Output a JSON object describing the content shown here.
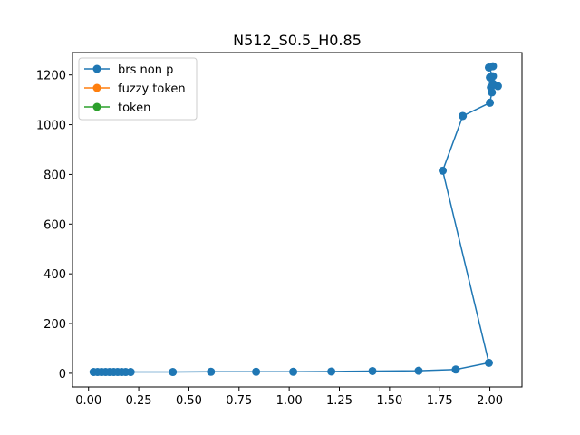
{
  "chart_data": {
    "type": "line",
    "title": "N512_S0.5_H0.85",
    "xlabel": "",
    "ylabel": "",
    "xlim": [
      -0.08,
      2.16
    ],
    "ylim": [
      -55,
      1290
    ],
    "x_ticks": [
      0.0,
      0.25,
      0.5,
      0.75,
      1.0,
      1.25,
      1.5,
      1.75,
      2.0
    ],
    "x_tick_labels": [
      "0.00",
      "0.25",
      "0.50",
      "0.75",
      "1.00",
      "1.25",
      "1.50",
      "1.75",
      "2.00"
    ],
    "y_ticks": [
      0,
      200,
      400,
      600,
      800,
      1000,
      1200
    ],
    "y_tick_labels": [
      "0",
      "200",
      "400",
      "600",
      "800",
      "1000",
      "1200"
    ],
    "grid": false,
    "legend_position": "top-left",
    "series": [
      {
        "name": "brs non p",
        "color": "#1f77b4",
        "x": [
          0.025,
          0.045,
          0.065,
          0.085,
          0.105,
          0.125,
          0.145,
          0.165,
          0.185,
          0.21,
          0.42,
          0.61,
          0.835,
          1.02,
          1.21,
          1.415,
          1.645,
          1.83,
          1.995,
          1.765,
          1.865,
          2.0,
          2.01,
          2.005,
          2.04,
          2.015,
          2.0,
          2.015,
          1.995,
          2.015
        ],
        "y": [
          5,
          5,
          5,
          5,
          5,
          5,
          5,
          5,
          5,
          5,
          5,
          6,
          6,
          6,
          7,
          9,
          10,
          15,
          42,
          815,
          1035,
          1088,
          1130,
          1150,
          1155,
          1165,
          1190,
          1195,
          1230,
          1235
        ]
      },
      {
        "name": "fuzzy token",
        "color": "#ff7f0e",
        "x": [],
        "y": []
      },
      {
        "name": "token",
        "color": "#2ca02c",
        "x": [],
        "y": []
      }
    ]
  }
}
